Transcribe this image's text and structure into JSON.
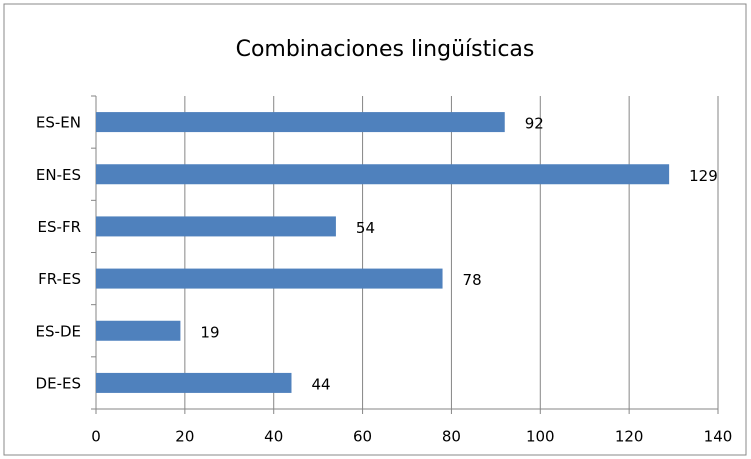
{
  "chart_data": {
    "type": "bar",
    "orientation": "horizontal",
    "title": "Combinaciones lingüísticas",
    "categories": [
      "ES-EN",
      "EN-ES",
      "ES-FR",
      "FR-ES",
      "ES-DE",
      "DE-ES"
    ],
    "values": [
      92,
      129,
      54,
      78,
      19,
      44
    ],
    "color": "#4f81bd",
    "xlim": [
      0,
      140
    ],
    "xticks": [
      0,
      20,
      40,
      60,
      80,
      100,
      120,
      140
    ],
    "grid": true
  }
}
